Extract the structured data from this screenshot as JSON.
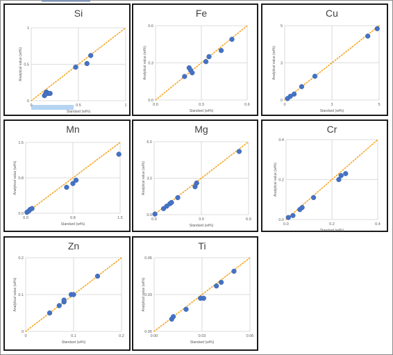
{
  "colors": {
    "point": "#4472c4",
    "trend": "#f5a623",
    "axis": "#d0d0d0",
    "text": "#595959",
    "highlight": "#b4d4f2"
  },
  "chart_data": [
    {
      "id": "si",
      "type": "scatter",
      "title": "Si",
      "xlabel": "Standard (wt%)",
      "ylabel": "Analytical value (wt%)",
      "xlim": [
        0,
        1
      ],
      "ylim": [
        0,
        1
      ],
      "xticks": [
        "0",
        "0.5",
        "1"
      ],
      "yticks": [
        "0",
        "0.5",
        "1"
      ],
      "grid_x": [
        0.5
      ],
      "grid_y": [
        0.5
      ],
      "trendline": "y=x",
      "x": [
        0.14,
        0.16,
        0.18,
        0.15,
        0.2,
        0.47,
        0.59,
        0.63
      ],
      "y": [
        0.07,
        0.12,
        0.1,
        0.09,
        0.1,
        0.46,
        0.51,
        0.62
      ]
    },
    {
      "id": "fe",
      "type": "scatter",
      "title": "Fe",
      "xlabel": "Standard (wt%)",
      "ylabel": "Analytical value (wt%)",
      "xlim": [
        0,
        0.6
      ],
      "ylim": [
        0,
        0.6
      ],
      "xticks": [
        "0.0",
        "0.3",
        "0.6"
      ],
      "yticks": [
        "0.0",
        "0.3",
        "0.6"
      ],
      "grid_x": [
        0.3
      ],
      "grid_y": [
        0.3
      ],
      "trendline": "y=x",
      "x": [
        0.19,
        0.22,
        0.23,
        0.24,
        0.33,
        0.35,
        0.43,
        0.5
      ],
      "y": [
        0.19,
        0.26,
        0.24,
        0.22,
        0.31,
        0.35,
        0.4,
        0.49
      ]
    },
    {
      "id": "cu",
      "type": "scatter",
      "title": "Cu",
      "xlabel": "Standard (wt%)",
      "ylabel": "Analytical value (wt%)",
      "xlim": [
        0,
        5
      ],
      "ylim": [
        0,
        5
      ],
      "xticks": [
        "0",
        "3",
        "5"
      ],
      "yticks": [
        "0",
        "3",
        "5"
      ],
      "grid_x": [
        2.5
      ],
      "grid_y": [
        2.5
      ],
      "trendline": "y=x",
      "x": [
        0.15,
        0.3,
        0.5,
        0.9,
        1.6,
        4.4,
        4.9
      ],
      "y": [
        0.1,
        0.25,
        0.4,
        0.9,
        1.6,
        4.3,
        4.8
      ]
    },
    {
      "id": "mn",
      "type": "scatter",
      "title": "Mn",
      "xlabel": "Standard (wt%)",
      "ylabel": "Analytical value (wt%)",
      "xlim": [
        0,
        1.5
      ],
      "ylim": [
        0,
        1.5
      ],
      "xticks": [
        "0.0",
        "0.8",
        "1.5"
      ],
      "yticks": [
        "0.0",
        "0.8",
        "1.5"
      ],
      "grid_x": [
        0.75
      ],
      "grid_y": [
        0.75
      ],
      "trendline": "y=x",
      "x": [
        0.02,
        0.05,
        0.07,
        0.1,
        0.65,
        0.75,
        0.8,
        1.48
      ],
      "y": [
        0.02,
        0.05,
        0.08,
        0.1,
        0.55,
        0.63,
        0.7,
        1.25
      ]
    },
    {
      "id": "mg",
      "type": "scatter",
      "title": "Mg",
      "xlabel": "Standard (wt%)",
      "ylabel": "Analytical value (wt%)",
      "xlim": [
        0,
        6
      ],
      "ylim": [
        0,
        6
      ],
      "xticks": [
        "0.0",
        "3.0",
        "6.0"
      ],
      "yticks": [
        "0.0",
        "3.0",
        "6.0"
      ],
      "grid_x": [
        3
      ],
      "grid_y": [
        3
      ],
      "trendline": "y=x",
      "x": [
        0.05,
        0.6,
        0.8,
        1.0,
        1.1,
        1.5,
        2.6,
        2.7,
        5.4
      ],
      "y": [
        0.05,
        0.5,
        0.7,
        0.9,
        1.0,
        1.4,
        2.3,
        2.6,
        5.2
      ]
    },
    {
      "id": "cr",
      "type": "scatter",
      "title": "Cr",
      "xlabel": "Standard (wt%)",
      "ylabel": "Analytical value (wt%)",
      "xlim": [
        0,
        0.4
      ],
      "ylim": [
        0,
        0.4
      ],
      "xticks": [
        "0.0",
        "0.2",
        "0.4"
      ],
      "yticks": [
        "0.0",
        "0.2",
        "0.4"
      ],
      "grid_x": [
        0.2
      ],
      "grid_y": [
        0.2
      ],
      "trendline": "y=x",
      "x": [
        0.01,
        0.03,
        0.06,
        0.07,
        0.12,
        0.23,
        0.24,
        0.26
      ],
      "y": [
        0.01,
        0.02,
        0.05,
        0.06,
        0.11,
        0.2,
        0.22,
        0.23
      ]
    },
    {
      "id": "zn",
      "type": "scatter",
      "title": "Zn",
      "xlabel": "Standard (wt%)",
      "ylabel": "Analytical value (wt%)",
      "xlim": [
        0,
        0.2
      ],
      "ylim": [
        0,
        0.2
      ],
      "xticks": [
        "0",
        "0.1",
        "0.2"
      ],
      "yticks": [
        "0",
        "0.1",
        "0.2"
      ],
      "grid_x": [
        0.1
      ],
      "grid_y": [
        0.1
      ],
      "trendline": "y=x",
      "x": [
        0.05,
        0.07,
        0.08,
        0.08,
        0.095,
        0.1,
        0.15
      ],
      "y": [
        0.05,
        0.07,
        0.08,
        0.085,
        0.1,
        0.1,
        0.15
      ]
    },
    {
      "id": "ti",
      "type": "scatter",
      "title": "Ti",
      "xlabel": "Standard (wt%)",
      "ylabel": "Analytical value (wt%)",
      "xlim": [
        0,
        0.06
      ],
      "ylim": [
        0,
        0.06
      ],
      "xticks": [
        "0.00",
        "0.03",
        "0.06"
      ],
      "yticks": [
        "0.00",
        "0.03",
        "0.06"
      ],
      "grid_x": [
        0.03
      ],
      "grid_y": [
        0.03
      ],
      "trendline": "y=x",
      "x": [
        0.011,
        0.012,
        0.02,
        0.029,
        0.031,
        0.039,
        0.042,
        0.05
      ],
      "y": [
        0.01,
        0.012,
        0.018,
        0.027,
        0.027,
        0.037,
        0.04,
        0.049
      ]
    }
  ]
}
